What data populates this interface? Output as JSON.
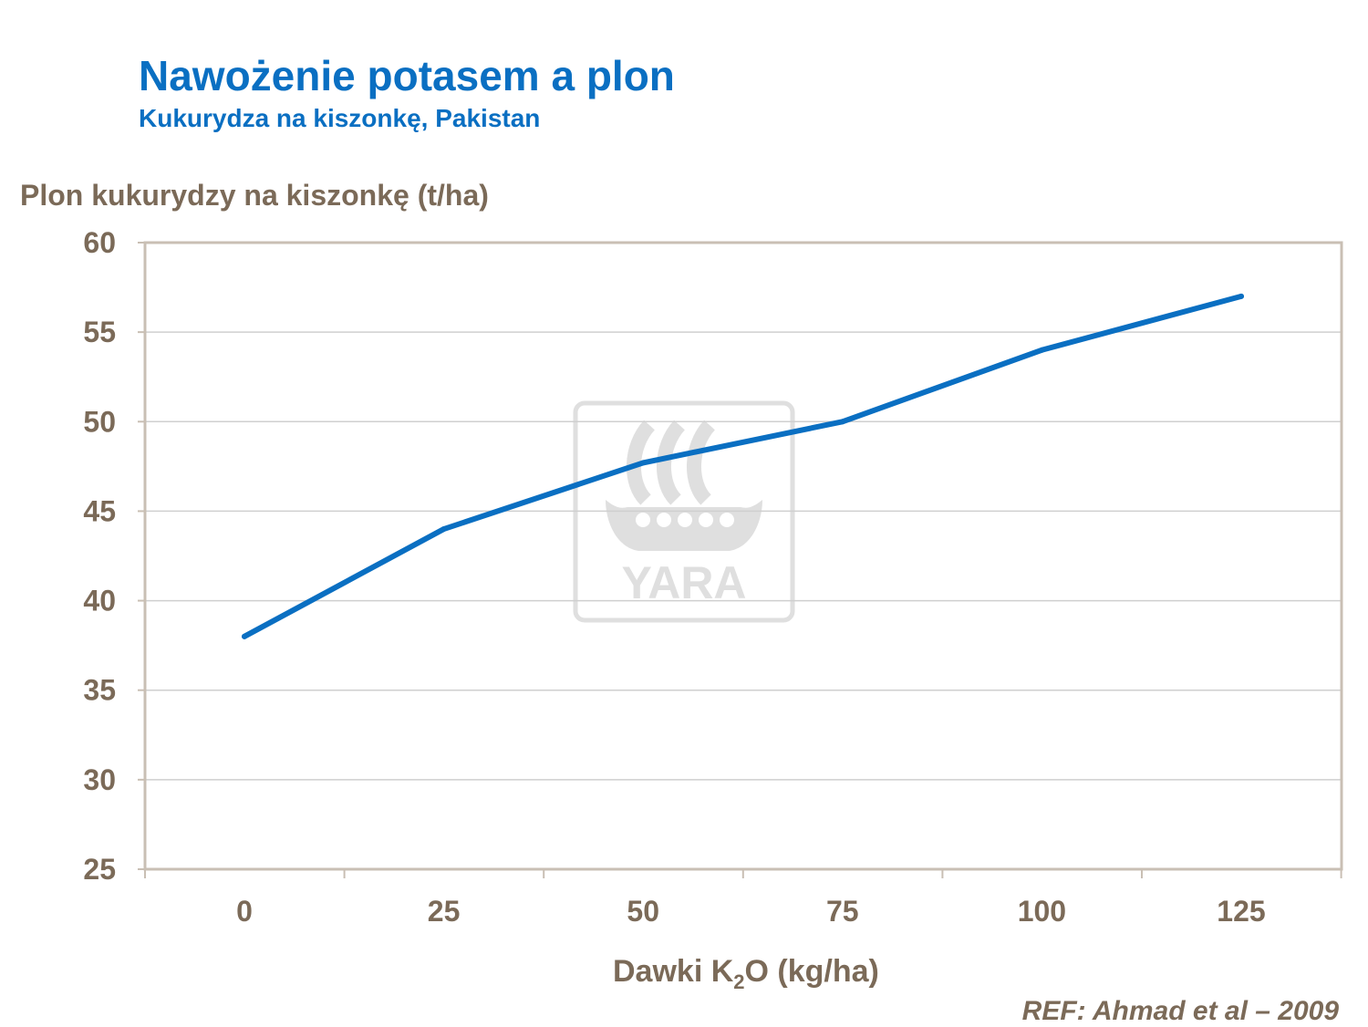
{
  "header": {
    "title": "Nawożenie potasem a plon",
    "subtitle": "Kukurydza na kiszonkę, Pakistan"
  },
  "watermark": {
    "text": "YARA",
    "icon": "viking-ship-logo-icon"
  },
  "reference": "REF:  Ahmad et al – 2009",
  "chart_data": {
    "type": "line",
    "ylabel": "Plon kukurydzy na kiszonkę (t/ha)",
    "xlabel_main": "Dawki K",
    "xlabel_sub": "2",
    "xlabel_tail": "O (kg/ha)",
    "categories": [
      "0",
      "25",
      "50",
      "75",
      "100",
      "125"
    ],
    "series": [
      {
        "values": [
          38,
          44,
          47.7,
          50,
          54,
          57
        ]
      }
    ],
    "ylim": [
      25,
      60
    ],
    "yticks": [
      25,
      30,
      35,
      40,
      45,
      50,
      55,
      60
    ],
    "grid": true,
    "line_color": "#0a6fc2"
  }
}
